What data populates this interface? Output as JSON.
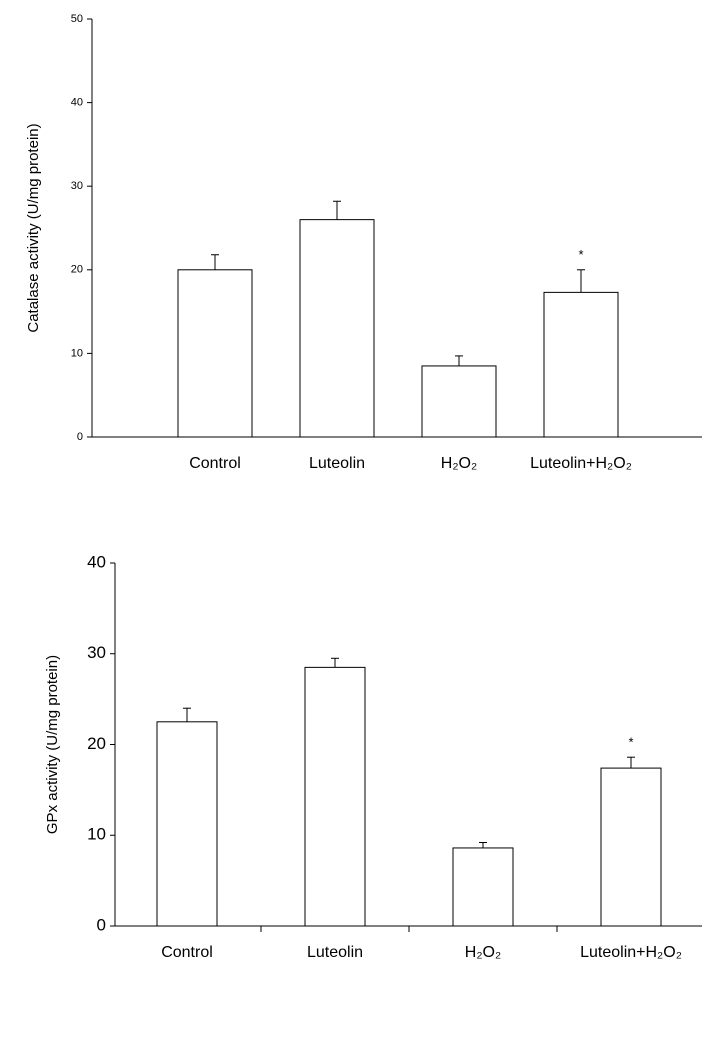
{
  "chart_data": [
    {
      "type": "bar",
      "ylabel": "Catalase activity (U/mg protein)",
      "categories": [
        "Control",
        "Luteolin",
        "H₂O₂",
        "Luteolin+H₂O₂"
      ],
      "values": [
        20,
        26,
        8.5,
        17.3
      ],
      "errors": [
        1.8,
        2.2,
        1.2,
        2.7
      ],
      "bar_labels": [
        null,
        null,
        null,
        "*"
      ],
      "color": "#ffffff",
      "edgecolor": "#000000",
      "ylim": [
        0,
        50
      ],
      "yticks": [
        0,
        10,
        20,
        30,
        40,
        50
      ]
    },
    {
      "type": "bar",
      "ylabel": "GPx activity (U/mg protein)",
      "categories": [
        "Control",
        "Luteolin",
        "H₂O₂",
        "Luteolin+H₂O₂"
      ],
      "values": [
        22.5,
        28.5,
        8.6,
        17.4
      ],
      "errors": [
        1.5,
        1.0,
        0.6,
        1.2
      ],
      "bar_labels": [
        null,
        null,
        null,
        "*"
      ],
      "color": "#ffffff",
      "edgecolor": "#000000",
      "ylim": [
        0,
        40
      ],
      "yticks": [
        0,
        10,
        20,
        30,
        40
      ]
    }
  ]
}
